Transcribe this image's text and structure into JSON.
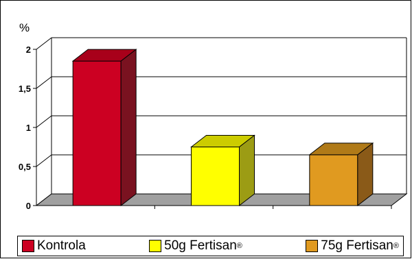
{
  "chart_data": {
    "type": "bar",
    "title": "",
    "ylabel": "%",
    "xlabel": "",
    "ylim": [
      0,
      2
    ],
    "y_ticks": [
      "0",
      "0,5",
      "1",
      "1,5",
      "2"
    ],
    "categories": [
      "Kontrola",
      "50g Fertisan®",
      "75g Fertisan®"
    ],
    "values": [
      1.85,
      0.75,
      0.65
    ],
    "grid": true,
    "legend_position": "bottom",
    "style": "3d"
  },
  "legend": {
    "items": [
      {
        "label": "Kontrola",
        "color": "#cc0022"
      },
      {
        "label": "50g Fertisan",
        "sup": "®",
        "color": "#ffff00"
      },
      {
        "label": "75g Fertisan",
        "sup": "®",
        "color": "#e09a20"
      }
    ]
  },
  "colors": {
    "bar_front": [
      "#cc0022",
      "#ffff00",
      "#e09a20"
    ],
    "bar_top": [
      "#a8001a",
      "#cccc00",
      "#b07a18"
    ],
    "bar_side": [
      "#7a1220",
      "#9c9c14",
      "#8a5a18"
    ],
    "floor": "#a0a0a0",
    "grid": "#000000"
  }
}
